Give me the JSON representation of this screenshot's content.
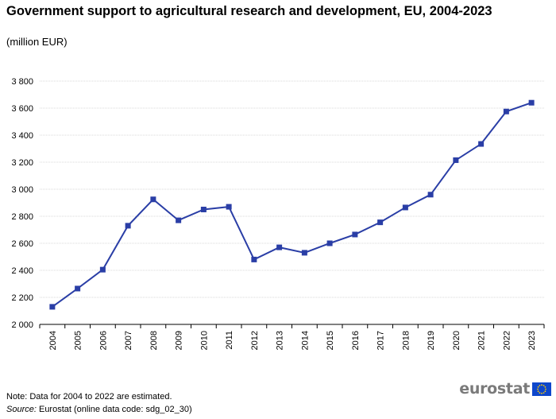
{
  "title": "Government support to agricultural research and development, EU, 2004-2023",
  "subtitle": "(million  EUR)",
  "note": "Note: Data for 2004 to 2022 are estimated.",
  "source_label": "Source:",
  "source_text": " Eurostat (online data code: sdg_02_30)",
  "logo_text": "eurostat",
  "colors": {
    "line": "#2a3ea6",
    "grid": "#d9d9d9",
    "axis": "#000000",
    "logo_text": "#7a7a7a",
    "flag_blue": "#0e47cb",
    "flag_stars": "#ffcc00"
  },
  "chart_data": {
    "type": "line",
    "title": "Government support to agricultural research and development, EU, 2004-2023",
    "unit": "(million  EUR)",
    "xlabel": "",
    "ylabel": "",
    "categories": [
      "2004",
      "2005",
      "2006",
      "2007",
      "2008",
      "2009",
      "2010",
      "2011",
      "2012",
      "2013",
      "2014",
      "2015",
      "2016",
      "2017",
      "2018",
      "2019",
      "2020",
      "2021",
      "2022",
      "2023"
    ],
    "series": [
      {
        "values": [
          2130,
          2265,
          2405,
          2730,
          2925,
          2770,
          2850,
          2870,
          2480,
          2570,
          2530,
          2600,
          2665,
          2755,
          2865,
          2960,
          3215,
          3335,
          3575,
          3640
        ]
      }
    ],
    "ylim": [
      2000,
      3800
    ],
    "yticks": [
      2000,
      2200,
      2400,
      2600,
      2800,
      3000,
      3200,
      3400,
      3600,
      3800
    ],
    "ytick_labels": [
      "2 000",
      "2 200",
      "2 400",
      "2 600",
      "2 800",
      "3 000",
      "3 200",
      "3 400",
      "3 600",
      "3 800"
    ],
    "grid": true,
    "legend": "none",
    "marker": "square"
  }
}
